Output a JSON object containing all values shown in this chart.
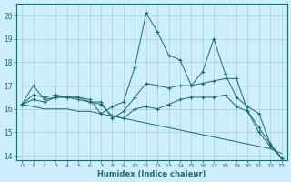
{
  "xlabel": "Humidex (Indice chaleur)",
  "bg_color": "#cceeff",
  "grid_color": "#aacccc",
  "line_color": "#1a6b6b",
  "xlim": [
    -0.5,
    23.5
  ],
  "ylim": [
    13.8,
    20.5
  ],
  "yticks": [
    14,
    15,
    16,
    17,
    18,
    19,
    20
  ],
  "xticks": [
    0,
    1,
    2,
    3,
    4,
    5,
    6,
    7,
    8,
    9,
    10,
    11,
    12,
    13,
    14,
    15,
    16,
    17,
    18,
    19,
    20,
    21,
    22,
    23
  ],
  "series": [
    {
      "x": [
        0,
        1,
        2,
        3,
        4,
        5,
        6,
        7,
        8,
        9,
        10,
        11,
        12,
        13,
        14,
        15,
        16,
        17,
        18,
        19,
        20,
        21,
        22,
        23
      ],
      "y": [
        16.2,
        16.6,
        16.5,
        16.6,
        16.5,
        16.5,
        16.4,
        15.8,
        16.1,
        16.3,
        17.8,
        20.1,
        19.3,
        18.3,
        18.1,
        17.0,
        17.6,
        19.0,
        17.5,
        16.5,
        16.1,
        15.8,
        14.5,
        13.9
      ],
      "marker": "+"
    },
    {
      "x": [
        0,
        1,
        2,
        3,
        4,
        5,
        6,
        7,
        8,
        9,
        10,
        11,
        12,
        13,
        14,
        15,
        16,
        17,
        18,
        19,
        20,
        21,
        22,
        23
      ],
      "y": [
        16.2,
        17.0,
        16.4,
        16.5,
        16.5,
        16.4,
        16.3,
        16.3,
        15.6,
        15.9,
        16.5,
        17.1,
        17.0,
        16.9,
        17.0,
        17.0,
        17.1,
        17.2,
        17.3,
        17.3,
        15.9,
        15.0,
        14.4,
        13.9
      ],
      "marker": "+"
    },
    {
      "x": [
        0,
        1,
        2,
        3,
        4,
        5,
        6,
        7,
        8,
        9,
        10,
        11,
        12,
        13,
        14,
        15,
        16,
        17,
        18,
        19,
        20,
        21,
        22,
        23
      ],
      "y": [
        16.2,
        16.1,
        16.0,
        16.0,
        16.0,
        15.9,
        15.9,
        15.8,
        15.7,
        15.6,
        15.5,
        15.4,
        15.3,
        15.2,
        15.1,
        15.0,
        14.9,
        14.8,
        14.7,
        14.6,
        14.5,
        14.4,
        14.3,
        14.1
      ],
      "marker": null
    },
    {
      "x": [
        0,
        1,
        2,
        3,
        4,
        5,
        6,
        7,
        8,
        9,
        10,
        11,
        12,
        13,
        14,
        15,
        16,
        17,
        18,
        19,
        20,
        21,
        22,
        23
      ],
      "y": [
        16.2,
        16.4,
        16.3,
        16.5,
        16.5,
        16.5,
        16.3,
        16.2,
        15.7,
        15.6,
        16.0,
        16.1,
        16.0,
        16.2,
        16.4,
        16.5,
        16.5,
        16.5,
        16.6,
        16.1,
        15.9,
        15.2,
        14.5,
        13.9
      ],
      "marker": "+"
    }
  ]
}
